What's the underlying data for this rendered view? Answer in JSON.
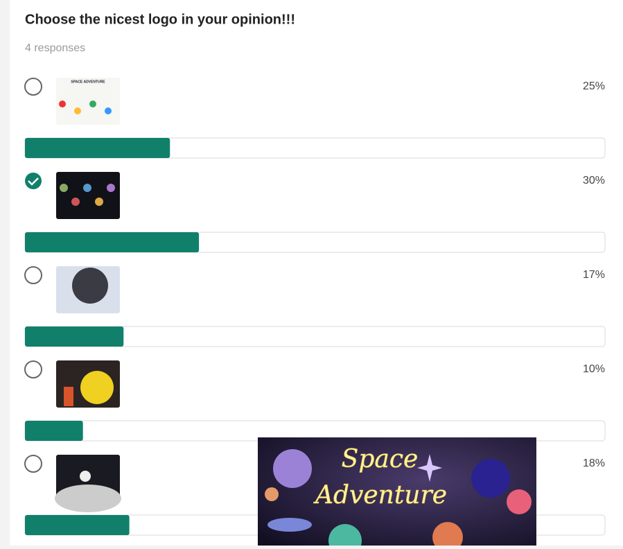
{
  "poll": {
    "title": "Choose the nicest logo in your opinion!!!",
    "responses": "4 responses",
    "xlim": [
      0,
      100
    ],
    "color": "#10806b",
    "options": [
      {
        "value": 25,
        "label": "25%",
        "selected": false
      },
      {
        "value": 30,
        "label": "30%",
        "selected": true
      },
      {
        "value": 17,
        "label": "17%",
        "selected": false
      },
      {
        "value": 10,
        "label": "10%",
        "selected": false
      },
      {
        "value": 18,
        "label": "18%",
        "selected": false
      }
    ],
    "thumb_text": "SPACE ADVENTURE",
    "overlay_lines": [
      "Space",
      "Adventure"
    ]
  }
}
